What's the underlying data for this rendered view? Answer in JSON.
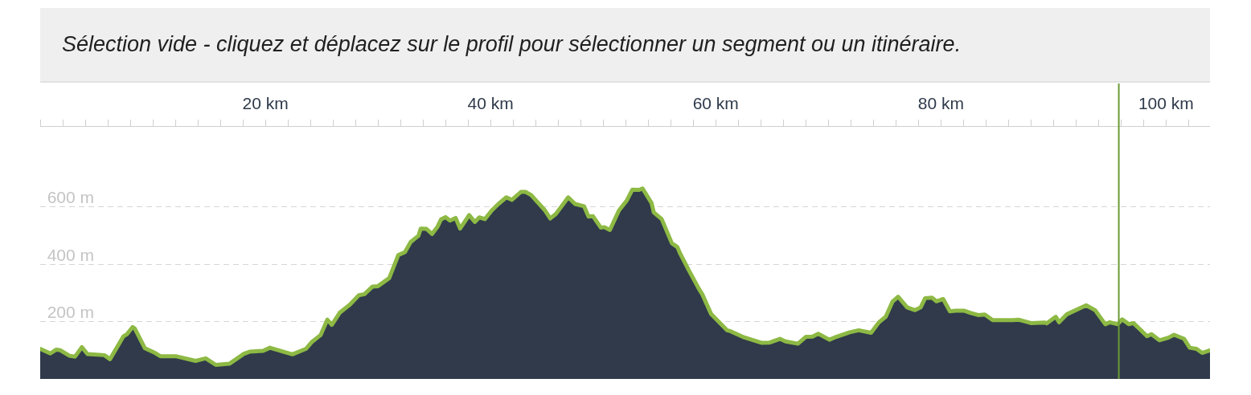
{
  "chart_data": {
    "type": "area",
    "title": "Sélection vide - cliquez et déplacez sur le profil pour sélectionner un segment ou un itinéraire.",
    "x": [
      0,
      0.9,
      1.4,
      1.8,
      2.6,
      3.1,
      3.7,
      4.2,
      5.7,
      6.2,
      7.4,
      7.7,
      8.2,
      8.4,
      9.3,
      10.2,
      10.7,
      12.1,
      13.8,
      14.7,
      15.6,
      16.8,
      18.1,
      18.6,
      19.8,
      20.4,
      22.4,
      23.6,
      24.1,
      24.9,
      25.5,
      25.9,
      26.6,
      27.5,
      28.3,
      28.8,
      29.5,
      30.0,
      31.0,
      31.8,
      32.4,
      32.9,
      33.6,
      33.8,
      34.3,
      34.8,
      35.3,
      35.6,
      36.0,
      36.4,
      36.9,
      37.3,
      38.1,
      38.6,
      39.0,
      39.5,
      40.1,
      40.7,
      41.4,
      41.9,
      42.7,
      43.1,
      43.6,
      44.8,
      45.3,
      45.8,
      46.9,
      47.5,
      48.3,
      48.7,
      49.1,
      49.8,
      50.1,
      50.6,
      51.4,
      52.1,
      52.6,
      53.2,
      53.5,
      54.3,
      54.5,
      55.2,
      56.1,
      56.6,
      56.8,
      57.6,
      58.5,
      58.8,
      59.6,
      61.0,
      61.3,
      62.4,
      64.1,
      64.8,
      65.7,
      66.2,
      67.3,
      68.0,
      68.6,
      69.1,
      70.1,
      70.7,
      71.9,
      72.7,
      73.8,
      74.5,
      75.1,
      75.7,
      76.2,
      77.0,
      77.7,
      78.2,
      78.6,
      79.2,
      79.6,
      80.2,
      80.8,
      81.3,
      82.1,
      82.6,
      83.3,
      83.9,
      84.6,
      86.4,
      86.9,
      88.0,
      89.2,
      89.4,
      90.2,
      90.5,
      91.2,
      92.9,
      93.7,
      94.6,
      95.0,
      95.7,
      96.1,
      96.7,
      97.1,
      97.9,
      98.3,
      98.7,
      99.4,
      100.2,
      100.7,
      101.6,
      102.1,
      102.7,
      103.2,
      103.9
    ],
    "series": [
      {
        "color": "#303a4b",
        "values": [
          105,
          89,
          102,
          100,
          81,
          78,
          111,
          87,
          83,
          69,
          149,
          156,
          181,
          176,
          107,
          91,
          79,
          79,
          63,
          72,
          49,
          53,
          88,
          95,
          98,
          109,
          86,
          105,
          128,
          153,
          207,
          189,
          231,
          259,
          292,
          296,
          322,
          324,
          352,
          432,
          443,
          478,
          500,
          525,
          524,
          506,
          532,
          557,
          565,
          553,
          562,
          525,
          572,
          548,
          564,
          558,
          588,
          611,
          634,
          625,
          653,
          653,
          642,
          590,
          560,
          576,
          634,
          611,
          603,
          567,
          568,
          528,
          530,
          520,
          588,
          623,
          661,
          660,
          665,
          614,
          581,
          558,
          474,
          460,
          441,
          380,
          315,
          296,
          226,
          170,
          167,
          147,
          126,
          127,
          140,
          131,
          123,
          147,
          148,
          158,
          137,
          147,
          163,
          170,
          161,
          198,
          217,
          270,
          287,
          250,
          240,
          250,
          282,
          284,
          271,
          279,
          236,
          238,
          238,
          231,
          223,
          225,
          205,
          205,
          207,
          195,
          197,
          194,
          217,
          198,
          226,
          257,
          240,
          191,
          198,
          191,
          208,
          191,
          195,
          165,
          149,
          156,
          135,
          144,
          154,
          140,
          109,
          105,
          91,
          100
        ]
      }
    ],
    "xlim": [
      0,
      103.9
    ],
    "xticks": [
      {
        "value": 0,
        "label": null
      },
      {
        "value": 2,
        "label": null
      },
      {
        "value": 4,
        "label": null
      },
      {
        "value": 6,
        "label": null
      },
      {
        "value": 8,
        "label": null
      },
      {
        "value": 10,
        "label": null
      },
      {
        "value": 12,
        "label": null
      },
      {
        "value": 14,
        "label": null
      },
      {
        "value": 16,
        "label": null
      },
      {
        "value": 18,
        "label": null
      },
      {
        "value": 20,
        "label": "20 km"
      },
      {
        "value": 22,
        "label": null
      },
      {
        "value": 24,
        "label": null
      },
      {
        "value": 26,
        "label": null
      },
      {
        "value": 28,
        "label": null
      },
      {
        "value": 30,
        "label": null
      },
      {
        "value": 32,
        "label": null
      },
      {
        "value": 34,
        "label": null
      },
      {
        "value": 36,
        "label": null
      },
      {
        "value": 38,
        "label": null
      },
      {
        "value": 40,
        "label": "40 km"
      },
      {
        "value": 42,
        "label": null
      },
      {
        "value": 44,
        "label": null
      },
      {
        "value": 46,
        "label": null
      },
      {
        "value": 48,
        "label": null
      },
      {
        "value": 50,
        "label": null
      },
      {
        "value": 52,
        "label": null
      },
      {
        "value": 54,
        "label": null
      },
      {
        "value": 56,
        "label": null
      },
      {
        "value": 58,
        "label": null
      },
      {
        "value": 60,
        "label": "60 km"
      },
      {
        "value": 62,
        "label": null
      },
      {
        "value": 64,
        "label": null
      },
      {
        "value": 66,
        "label": null
      },
      {
        "value": 68,
        "label": null
      },
      {
        "value": 70,
        "label": null
      },
      {
        "value": 72,
        "label": null
      },
      {
        "value": 74,
        "label": null
      },
      {
        "value": 76,
        "label": null
      },
      {
        "value": 78,
        "label": null
      },
      {
        "value": 80,
        "label": "80 km"
      },
      {
        "value": 82,
        "label": null
      },
      {
        "value": 84,
        "label": null
      },
      {
        "value": 86,
        "label": null
      },
      {
        "value": 88,
        "label": null
      },
      {
        "value": 90,
        "label": null
      },
      {
        "value": 92,
        "label": null
      },
      {
        "value": 94,
        "label": null
      },
      {
        "value": 96,
        "label": null
      },
      {
        "value": 98,
        "label": null
      },
      {
        "value": 100,
        "label": "100 km"
      },
      {
        "value": 102,
        "label": null
      }
    ],
    "ylim": [
      0,
      880
    ],
    "yticks": [
      {
        "value": 200,
        "label": "200 m"
      },
      {
        "value": 400,
        "label": "400 m"
      },
      {
        "value": 600,
        "label": "600 m"
      }
    ],
    "grid": "y",
    "ref_lines": [
      {
        "axis": "x",
        "value": 95.8,
        "color": "#6a9a35"
      }
    ]
  }
}
